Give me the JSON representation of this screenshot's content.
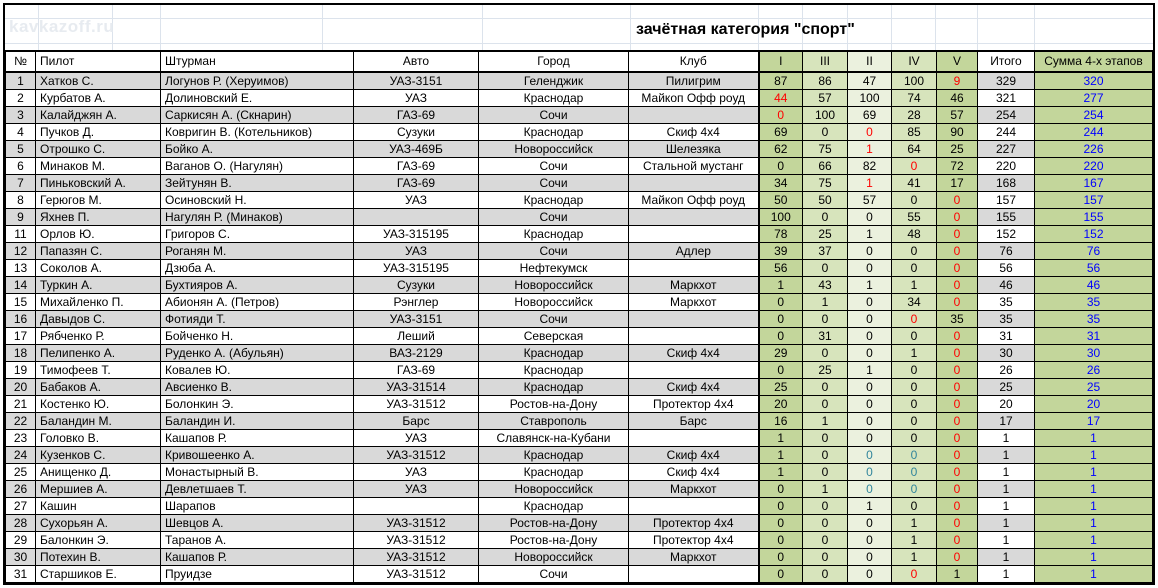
{
  "watermark": "kavkazoff.ru",
  "title": "зачётная категория \"спорт\"",
  "colors": {
    "stage_green_dark": "#c3d69b",
    "stage_green_mid": "#d7e4bc",
    "stage_green_light": "#ebf1de",
    "band_gray": "#d9d9d9",
    "dropped_score_red": "#ff0000",
    "sum_blue": "#0000ff",
    "teal_zero": "#31859c",
    "watermark_gray": "#e7ebf0",
    "gridline": "#dce3ec"
  },
  "table": {
    "columns": [
      "№",
      "Пилот",
      "Штурман",
      "Авто",
      "Город",
      "Клуб",
      "I",
      "III",
      "II",
      "IV",
      "V",
      "Итого",
      "Сумма 4-х этапов"
    ],
    "column_keys": [
      "num",
      "pilot",
      "navigator",
      "car",
      "city",
      "club",
      "stage-I",
      "stage-III",
      "stage-II",
      "stage-IV",
      "stage-V",
      "total",
      "sum-4-stages"
    ],
    "rows": [
      {
        "num": 1,
        "pilot": "Хатков С.",
        "navigator": "Логунов Р. (Херуимов)",
        "car": "УАЗ-3151",
        "city": "Геленджик",
        "club": "Пилигрим",
        "stages": [
          {
            "v": 87
          },
          {
            "v": 86
          },
          {
            "v": 47
          },
          {
            "v": 100
          },
          {
            "v": 9,
            "c": "red"
          }
        ],
        "total": 329,
        "sum4": 320
      },
      {
        "num": 2,
        "pilot": "Курбатов А.",
        "navigator": "Долиновский Е.",
        "car": "УАЗ",
        "city": "Краснодар",
        "club": "Майкоп Офф роуд",
        "stages": [
          {
            "v": 44,
            "c": "red"
          },
          {
            "v": 57
          },
          {
            "v": 100
          },
          {
            "v": 74
          },
          {
            "v": 46
          }
        ],
        "total": 321,
        "sum4": 277
      },
      {
        "num": 3,
        "pilot": "Калайджян А.",
        "navigator": "Саркисян А. (Скнарин)",
        "car": "ГАЗ-69",
        "city": "Сочи",
        "club": "",
        "stages": [
          {
            "v": 0,
            "c": "red"
          },
          {
            "v": 100
          },
          {
            "v": 69
          },
          {
            "v": 28
          },
          {
            "v": 57
          }
        ],
        "total": 254,
        "sum4": 254
      },
      {
        "num": 4,
        "pilot": "Пучков Д.",
        "navigator": "Ковригин В. (Котельников)",
        "car": "Сузуки",
        "city": "Краснодар",
        "club": "Скиф 4х4",
        "stages": [
          {
            "v": 69
          },
          {
            "v": 0
          },
          {
            "v": 0,
            "c": "red"
          },
          {
            "v": 85
          },
          {
            "v": 90
          }
        ],
        "total": 244,
        "sum4": 244
      },
      {
        "num": 5,
        "pilot": "Отрошко С.",
        "navigator": "Бойко А.",
        "car": "УАЗ-469Б",
        "city": "Новороссийск",
        "club": "Шелезяка",
        "stages": [
          {
            "v": 62
          },
          {
            "v": 75
          },
          {
            "v": 1,
            "c": "red"
          },
          {
            "v": 64
          },
          {
            "v": 25
          }
        ],
        "total": 227,
        "sum4": 226
      },
      {
        "num": 6,
        "pilot": "Минаков М.",
        "navigator": "Ваганов О. (Нагулян)",
        "car": "ГАЗ-69",
        "city": "Сочи",
        "club": "Стальной мустанг",
        "stages": [
          {
            "v": 0
          },
          {
            "v": 66
          },
          {
            "v": 82
          },
          {
            "v": 0,
            "c": "red"
          },
          {
            "v": 72
          }
        ],
        "total": 220,
        "sum4": 220
      },
      {
        "num": 7,
        "pilot": "Пиньковский А.",
        "navigator": "Зейтунян В.",
        "car": "ГАЗ-69",
        "city": "Сочи",
        "club": "",
        "stages": [
          {
            "v": 34
          },
          {
            "v": 75
          },
          {
            "v": 1,
            "c": "red"
          },
          {
            "v": 41
          },
          {
            "v": 17
          }
        ],
        "total": 168,
        "sum4": 167
      },
      {
        "num": 8,
        "pilot": "Герюгов М.",
        "navigator": "Осиновский Н.",
        "car": "УАЗ",
        "city": "Краснодар",
        "club": "Майкоп Офф роуд",
        "stages": [
          {
            "v": 50
          },
          {
            "v": 50
          },
          {
            "v": 57
          },
          {
            "v": 0
          },
          {
            "v": 0,
            "c": "red"
          }
        ],
        "total": 157,
        "sum4": 157
      },
      {
        "num": 9,
        "pilot": "Яхнев П.",
        "navigator": "Нагулян Р. (Минаков)",
        "car": "",
        "city": "Сочи",
        "club": "",
        "stages": [
          {
            "v": 100
          },
          {
            "v": 0
          },
          {
            "v": 0
          },
          {
            "v": 55
          },
          {
            "v": 0,
            "c": "red"
          }
        ],
        "total": 155,
        "sum4": 155
      },
      {
        "num": 11,
        "pilot": "Орлов Ю.",
        "navigator": "Григоров С.",
        "car": "УАЗ-315195",
        "city": "Краснодар",
        "club": "",
        "stages": [
          {
            "v": 78
          },
          {
            "v": 25
          },
          {
            "v": 1
          },
          {
            "v": 48
          },
          {
            "v": 0,
            "c": "red"
          }
        ],
        "total": 152,
        "sum4": 152
      },
      {
        "num": 12,
        "pilot": "Папазян С.",
        "navigator": "Роганян М.",
        "car": "УАЗ",
        "city": "Сочи",
        "club": "Адлер",
        "stages": [
          {
            "v": 39
          },
          {
            "v": 37
          },
          {
            "v": 0
          },
          {
            "v": 0
          },
          {
            "v": 0,
            "c": "red"
          }
        ],
        "total": 76,
        "sum4": 76
      },
      {
        "num": 13,
        "pilot": "Соколов А.",
        "navigator": "Дзюба А.",
        "car": "УАЗ-315195",
        "city": "Нефтекумск",
        "club": "",
        "stages": [
          {
            "v": 56
          },
          {
            "v": 0
          },
          {
            "v": 0
          },
          {
            "v": 0
          },
          {
            "v": 0,
            "c": "red"
          }
        ],
        "total": 56,
        "sum4": 56
      },
      {
        "num": 14,
        "pilot": "Туркин А.",
        "navigator": "Бухтияров А.",
        "car": "Сузуки",
        "city": "Новороссийск",
        "club": "Маркхот",
        "stages": [
          {
            "v": 1
          },
          {
            "v": 43
          },
          {
            "v": 1
          },
          {
            "v": 1
          },
          {
            "v": 0,
            "c": "red"
          }
        ],
        "total": 46,
        "sum4": 46
      },
      {
        "num": 15,
        "pilot": "Михайленко П.",
        "navigator": "Абионян А. (Петров)",
        "car": "Рэнглер",
        "city": "Новороссийск",
        "club": "Маркхот",
        "stages": [
          {
            "v": 0
          },
          {
            "v": 1
          },
          {
            "v": 0
          },
          {
            "v": 34
          },
          {
            "v": 0,
            "c": "red"
          }
        ],
        "total": 35,
        "sum4": 35
      },
      {
        "num": 16,
        "pilot": "Давыдов С.",
        "navigator": "Фотияди Т.",
        "car": "УАЗ-3151",
        "city": "Сочи",
        "club": "",
        "stages": [
          {
            "v": 0
          },
          {
            "v": 0
          },
          {
            "v": 0
          },
          {
            "v": 0,
            "c": "red"
          },
          {
            "v": 35
          }
        ],
        "total": 35,
        "sum4": 35
      },
      {
        "num": 17,
        "pilot": "Рябченко Р.",
        "navigator": "Бойченко Н.",
        "car": "Леший",
        "city": "Северская",
        "club": "",
        "stages": [
          {
            "v": 0
          },
          {
            "v": 31
          },
          {
            "v": 0
          },
          {
            "v": 0
          },
          {
            "v": 0,
            "c": "red"
          }
        ],
        "total": 31,
        "sum4": 31
      },
      {
        "num": 18,
        "pilot": "Пелипенко А.",
        "navigator": "Руденко А. (Абульян)",
        "car": "ВАЗ-2129",
        "city": "Краснодар",
        "club": "Скиф 4х4",
        "stages": [
          {
            "v": 29
          },
          {
            "v": 0
          },
          {
            "v": 0
          },
          {
            "v": 1
          },
          {
            "v": 0,
            "c": "red"
          }
        ],
        "total": 30,
        "sum4": 30
      },
      {
        "num": 19,
        "pilot": "Тимофеев Т.",
        "navigator": "Ковалев Ю.",
        "car": "ГАЗ-69",
        "city": "Краснодар",
        "club": "",
        "stages": [
          {
            "v": 0
          },
          {
            "v": 25
          },
          {
            "v": 1
          },
          {
            "v": 0
          },
          {
            "v": 0,
            "c": "red"
          }
        ],
        "total": 26,
        "sum4": 26
      },
      {
        "num": 20,
        "pilot": "Бабаков А.",
        "navigator": "Авсиенко В.",
        "car": "УАЗ-31514",
        "city": "Краснодар",
        "club": "Скиф 4х4",
        "stages": [
          {
            "v": 25
          },
          {
            "v": 0
          },
          {
            "v": 0
          },
          {
            "v": 0
          },
          {
            "v": 0,
            "c": "red"
          }
        ],
        "total": 25,
        "sum4": 25
      },
      {
        "num": 21,
        "pilot": "Костенко Ю.",
        "navigator": "Болонкин Э.",
        "car": "УАЗ-31512",
        "city": "Ростов-на-Дону",
        "club": "Протектор 4х4",
        "stages": [
          {
            "v": 20
          },
          {
            "v": 0
          },
          {
            "v": 0
          },
          {
            "v": 0
          },
          {
            "v": 0,
            "c": "red"
          }
        ],
        "total": 20,
        "sum4": 20
      },
      {
        "num": 22,
        "pilot": "Баландин М.",
        "navigator": "Баландин И.",
        "car": "Барс",
        "city": "Ставрополь",
        "club": "Барс",
        "stages": [
          {
            "v": 16
          },
          {
            "v": 1
          },
          {
            "v": 0
          },
          {
            "v": 0
          },
          {
            "v": 0,
            "c": "red"
          }
        ],
        "total": 17,
        "sum4": 17
      },
      {
        "num": 23,
        "pilot": "Головко В.",
        "navigator": "Кашапов Р.",
        "car": "УАЗ",
        "city": "Славянск-на-Кубани",
        "club": "",
        "stages": [
          {
            "v": 1
          },
          {
            "v": 0
          },
          {
            "v": 0
          },
          {
            "v": 0
          },
          {
            "v": 0,
            "c": "red"
          }
        ],
        "total": 1,
        "sum4": 1
      },
      {
        "num": 24,
        "pilot": "Кузенков С.",
        "navigator": "Кривошеенко А.",
        "car": "УАЗ-31512",
        "city": "Краснодар",
        "club": "Скиф 4х4",
        "stages": [
          {
            "v": 1
          },
          {
            "v": 0
          },
          {
            "v": 0,
            "c": "teal"
          },
          {
            "v": 0,
            "c": "teal"
          },
          {
            "v": 0,
            "c": "red"
          }
        ],
        "total": 1,
        "sum4": 1
      },
      {
        "num": 25,
        "pilot": "Анищенко Д.",
        "navigator": "Монастырный В.",
        "car": "УАЗ",
        "city": "Краснодар",
        "club": "Скиф 4х4",
        "stages": [
          {
            "v": 1
          },
          {
            "v": 0
          },
          {
            "v": 0,
            "c": "teal"
          },
          {
            "v": 0,
            "c": "teal"
          },
          {
            "v": 0,
            "c": "red"
          }
        ],
        "total": 1,
        "sum4": 1
      },
      {
        "num": 26,
        "pilot": "Мершиев А.",
        "navigator": "Девлетшаев Т.",
        "car": "УАЗ",
        "city": "Новороссийск",
        "club": "Маркхот",
        "stages": [
          {
            "v": 0
          },
          {
            "v": 1
          },
          {
            "v": 0,
            "c": "teal"
          },
          {
            "v": 0,
            "c": "teal"
          },
          {
            "v": 0,
            "c": "red"
          }
        ],
        "total": 1,
        "sum4": 1
      },
      {
        "num": 27,
        "pilot": "Кашин",
        "navigator": "Шарапов",
        "car": "",
        "city": "Краснодар",
        "club": "",
        "stages": [
          {
            "v": 0
          },
          {
            "v": 0
          },
          {
            "v": 1
          },
          {
            "v": 0
          },
          {
            "v": 0,
            "c": "red"
          }
        ],
        "total": 1,
        "sum4": 1
      },
      {
        "num": 28,
        "pilot": "Сухорьян А.",
        "navigator": "Шевцов А.",
        "car": "УАЗ-31512",
        "city": "Ростов-на-Дону",
        "club": "Протектор 4х4",
        "stages": [
          {
            "v": 0
          },
          {
            "v": 0
          },
          {
            "v": 0
          },
          {
            "v": 1
          },
          {
            "v": 0,
            "c": "red"
          }
        ],
        "total": 1,
        "sum4": 1
      },
      {
        "num": 29,
        "pilot": "Балонкин Э.",
        "navigator": "Таранов А.",
        "car": "УАЗ-31512",
        "city": "Ростов-на-Дону",
        "club": "Протектор 4х4",
        "stages": [
          {
            "v": 0
          },
          {
            "v": 0
          },
          {
            "v": 0
          },
          {
            "v": 1
          },
          {
            "v": 0,
            "c": "red"
          }
        ],
        "total": 1,
        "sum4": 1
      },
      {
        "num": 30,
        "pilot": "Потехин В.",
        "navigator": "Кашапов Р.",
        "car": "УАЗ-31512",
        "city": "Новороссийск",
        "club": "Маркхот",
        "stages": [
          {
            "v": 0
          },
          {
            "v": 0
          },
          {
            "v": 0
          },
          {
            "v": 1
          },
          {
            "v": 0,
            "c": "red"
          }
        ],
        "total": 1,
        "sum4": 1
      },
      {
        "num": 31,
        "pilot": "Старшиков Е.",
        "navigator": "Пруидзе",
        "car": "УАЗ-31512",
        "city": "Сочи",
        "club": "",
        "stages": [
          {
            "v": 0
          },
          {
            "v": 0
          },
          {
            "v": 0
          },
          {
            "v": 0,
            "c": "red"
          },
          {
            "v": 1
          }
        ],
        "total": 1,
        "sum4": 1
      }
    ]
  }
}
